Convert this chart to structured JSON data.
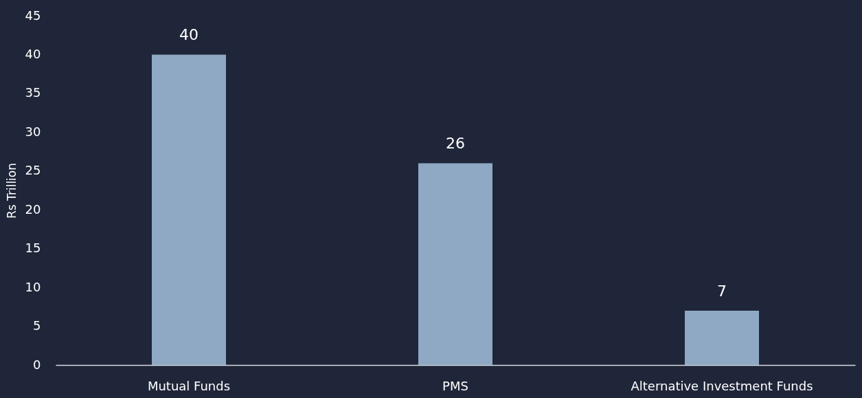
{
  "chart_data": {
    "type": "bar",
    "ylabel": "Rs Trillion",
    "categories": [
      "Mutual Funds",
      "PMS",
      "Alternative Investment Funds"
    ],
    "values": [
      40,
      26,
      7
    ],
    "color": "#8fa9c4",
    "ylim": [
      0,
      45
    ],
    "yticks": [
      0,
      5,
      10,
      15,
      20,
      25,
      30,
      35,
      40,
      45
    ],
    "grid": false,
    "data_labels": true
  }
}
